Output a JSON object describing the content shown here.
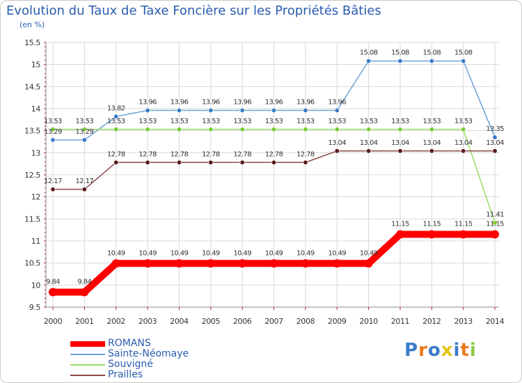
{
  "chart_data": {
    "type": "line",
    "title": "Evolution du Taux de Taxe Foncière sur les Propriétés Bâties",
    "unit_label": "(en %)",
    "xlabel": "",
    "ylabel": "",
    "ylim": [
      9.5,
      15.5
    ],
    "yticks": [
      "9.5",
      "10",
      "10.5",
      "11",
      "11.5",
      "12",
      "12.5",
      "13",
      "13.5",
      "14",
      "14.5",
      "15",
      "15.5"
    ],
    "categories": [
      "2000",
      "2001",
      "2002",
      "2003",
      "2004",
      "2005",
      "2006",
      "2007",
      "2008",
      "2009",
      "2010",
      "2011",
      "2012",
      "2013",
      "2014"
    ],
    "series": [
      {
        "name": "ROMANS",
        "color": "#ff0000",
        "marker": "#ff0000",
        "values": [
          9.84,
          9.84,
          10.49,
          10.49,
          10.49,
          10.49,
          10.49,
          10.49,
          10.49,
          10.49,
          10.49,
          11.15,
          11.15,
          11.15,
          11.15
        ],
        "labels": [
          "9.84",
          "9.84",
          "10.49",
          "10.49",
          "10.49",
          "10.49",
          "10.49",
          "10.49",
          "10.49",
          "10.49",
          "10.49",
          "11.15",
          "11.15",
          "11.15",
          "11.15"
        ]
      },
      {
        "name": "Sainte-Néomaye",
        "color": "#6fa1d6",
        "marker": "#3a7bc8",
        "values": [
          13.29,
          13.29,
          13.82,
          13.96,
          13.96,
          13.96,
          13.96,
          13.96,
          13.96,
          13.96,
          15.08,
          15.08,
          15.08,
          15.08,
          13.35
        ],
        "labels": [
          "13.29",
          "13.29",
          "13.82",
          "13.96",
          "13.96",
          "13.96",
          "13.96",
          "13.96",
          "13.96",
          "13.96",
          "15.08",
          "15.08",
          "15.08",
          "15.08",
          "13.35"
        ]
      },
      {
        "name": "Souvigné",
        "color": "#99dd66",
        "marker": "#77cc33",
        "values": [
          13.53,
          13.53,
          13.53,
          13.53,
          13.53,
          13.53,
          13.53,
          13.53,
          13.53,
          13.53,
          13.53,
          13.53,
          13.53,
          13.53,
          11.41
        ],
        "labels": [
          "13.53",
          "13.53",
          "13.53",
          "13.53",
          "13.53",
          "13.53",
          "13.53",
          "13.53",
          "13.53",
          "13.53",
          "13.53",
          "13.53",
          "13.53",
          "13.53",
          "11.41"
        ]
      },
      {
        "name": "Prailles",
        "color": "#8a4a4a",
        "marker": "#5a1a1a",
        "values": [
          12.17,
          12.17,
          12.78,
          12.78,
          12.78,
          12.78,
          12.78,
          12.78,
          12.78,
          13.04,
          13.04,
          13.04,
          13.04,
          13.04,
          13.04
        ],
        "labels": [
          "12.17",
          "12.17",
          "12.78",
          "12.78",
          "12.78",
          "12.78",
          "12.78",
          "12.78",
          "12.78",
          "13.04",
          "13.04",
          "13.04",
          "13.04",
          "13.04",
          "13.04"
        ]
      }
    ],
    "legend_position": "bottom-left",
    "grid": true
  },
  "logo": {
    "letters": [
      "P",
      "r",
      "o",
      "x",
      "i",
      "t",
      "i"
    ],
    "colors": [
      "#3a7bc8",
      "#e87a1e",
      "#3a7bc8",
      "#e2c418",
      "#3a7bc8",
      "#e87a1e",
      "#8cc63f"
    ]
  }
}
